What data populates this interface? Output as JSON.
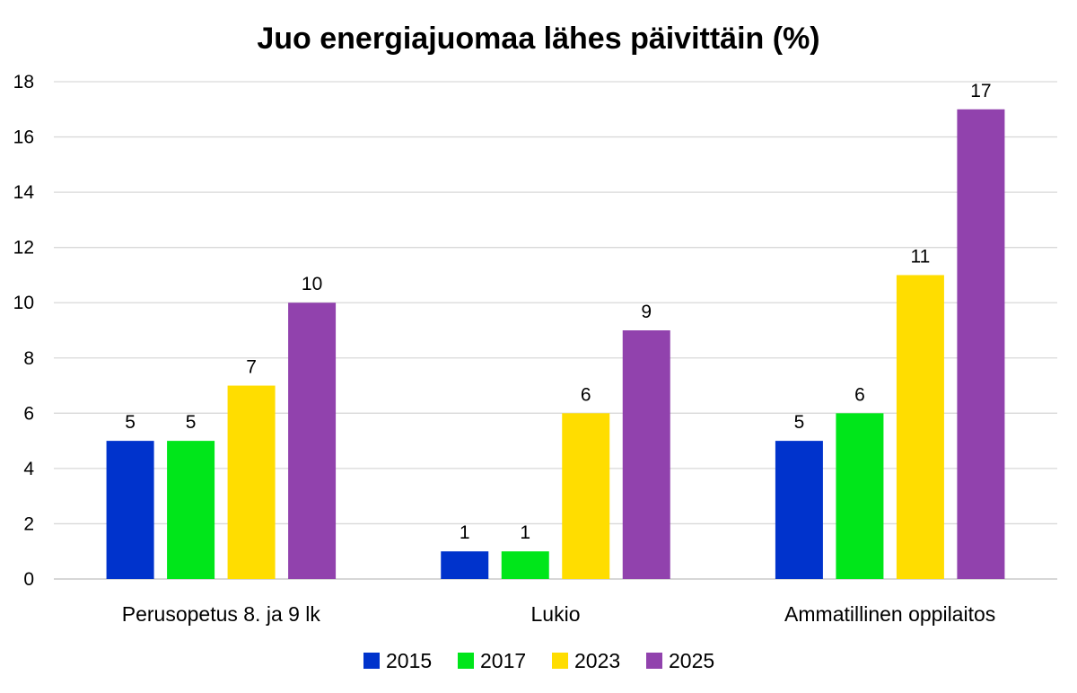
{
  "chart_data": {
    "type": "bar",
    "title": "Juo energiajuomaa lähes päivittäin (%)",
    "xlabel": "",
    "ylabel": "",
    "ylim": [
      0,
      18
    ],
    "yticks": [
      0,
      2,
      4,
      6,
      8,
      10,
      12,
      14,
      16,
      18
    ],
    "grid": true,
    "legend_position": "bottom",
    "data_labels": true,
    "categories": [
      "Perusopetus 8. ja 9 lk",
      "Lukio",
      "Ammatillinen oppilaitos"
    ],
    "series": [
      {
        "name": "2015",
        "color": "#0033cc",
        "values": [
          5,
          1,
          5
        ]
      },
      {
        "name": "2017",
        "color": "#00e61a",
        "values": [
          5,
          1,
          6
        ]
      },
      {
        "name": "2023",
        "color": "#ffdd00",
        "values": [
          7,
          6,
          11
        ]
      },
      {
        "name": "2025",
        "color": "#9142ad",
        "values": [
          10,
          9,
          17
        ]
      }
    ]
  }
}
